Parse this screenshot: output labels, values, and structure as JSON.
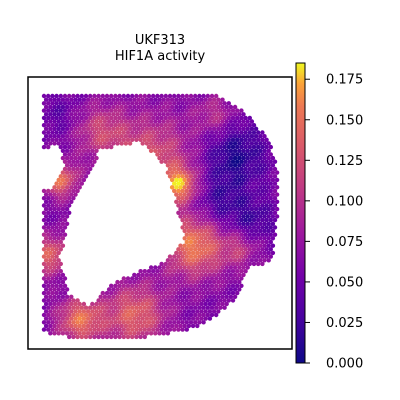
{
  "chart_data": {
    "type": "heatmap",
    "title_line1": "UKF313",
    "title_line2": "HIF1A activity",
    "colormap": "plasma",
    "value_range": [
      0.0,
      0.185
    ],
    "colorbar": {
      "ticks": [
        0.0,
        0.025,
        0.05,
        0.075,
        0.1,
        0.125,
        0.15,
        0.175
      ],
      "tick_labels": [
        "0.000",
        "0.025",
        "0.050",
        "0.075",
        "0.100",
        "0.125",
        "0.150",
        "0.175"
      ],
      "placement": "right"
    },
    "axes": {
      "ticks_visible": false,
      "grid": false
    },
    "colors": {
      "plasma_low": "#0d0887",
      "plasma_mid": "#cc4778",
      "plasma_high": "#f0f921"
    }
  }
}
